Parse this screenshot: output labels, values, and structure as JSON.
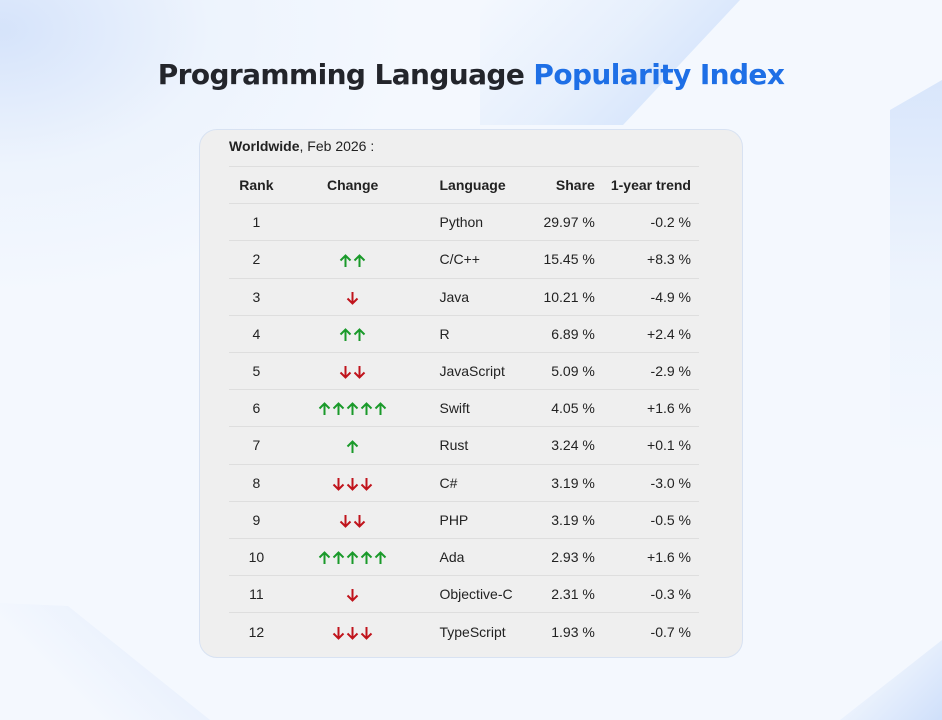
{
  "page": {
    "title_main": "Programming Language",
    "title_accent": "Popularity Index",
    "accent_color": "#1e6fe6"
  },
  "card": {
    "caption_bold": "Worldwide",
    "caption_rest": ", Feb 2026 :"
  },
  "table": {
    "headers": {
      "rank": "Rank",
      "change": "Change",
      "language": "Language",
      "share": "Share",
      "trend": "1-year trend"
    },
    "colors": {
      "up": "#1a9a2a",
      "down": "#c0141c"
    },
    "rows": [
      {
        "rank": "1",
        "change": {
          "dir": "none",
          "count": 0
        },
        "language": "Python",
        "share": "29.97 %",
        "trend": "-0.2 %"
      },
      {
        "rank": "2",
        "change": {
          "dir": "up",
          "count": 2
        },
        "language": "C/C++",
        "share": "15.45 %",
        "trend": "+8.3 %"
      },
      {
        "rank": "3",
        "change": {
          "dir": "down",
          "count": 1
        },
        "language": "Java",
        "share": "10.21 %",
        "trend": "-4.9 %"
      },
      {
        "rank": "4",
        "change": {
          "dir": "up",
          "count": 2
        },
        "language": "R",
        "share": "6.89 %",
        "trend": "+2.4 %"
      },
      {
        "rank": "5",
        "change": {
          "dir": "down",
          "count": 2
        },
        "language": "JavaScript",
        "share": "5.09 %",
        "trend": "-2.9 %"
      },
      {
        "rank": "6",
        "change": {
          "dir": "up",
          "count": 5
        },
        "language": "Swift",
        "share": "4.05 %",
        "trend": "+1.6 %"
      },
      {
        "rank": "7",
        "change": {
          "dir": "up",
          "count": 1
        },
        "language": "Rust",
        "share": "3.24 %",
        "trend": "+0.1 %"
      },
      {
        "rank": "8",
        "change": {
          "dir": "down",
          "count": 3
        },
        "language": "C#",
        "share": "3.19 %",
        "trend": "-3.0 %"
      },
      {
        "rank": "9",
        "change": {
          "dir": "down",
          "count": 2
        },
        "language": "PHP",
        "share": "3.19 %",
        "trend": "-0.5 %"
      },
      {
        "rank": "10",
        "change": {
          "dir": "up",
          "count": 5
        },
        "language": "Ada",
        "share": "2.93 %",
        "trend": "+1.6 %"
      },
      {
        "rank": "11",
        "change": {
          "dir": "down",
          "count": 1
        },
        "language": "Objective-C",
        "share": "2.31 %",
        "trend": "-0.3 %"
      },
      {
        "rank": "12",
        "change": {
          "dir": "down",
          "count": 3
        },
        "language": "TypeScript",
        "share": "1.93 %",
        "trend": "-0.7 %"
      }
    ]
  }
}
